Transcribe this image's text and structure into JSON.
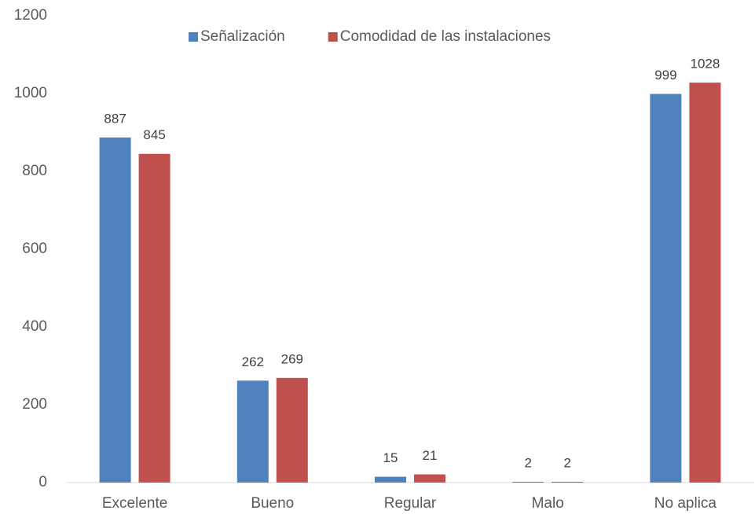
{
  "chart_data": {
    "type": "bar",
    "categories": [
      "Excelente",
      "Bueno",
      "Regular",
      "Malo",
      "No aplica"
    ],
    "series": [
      {
        "name": "Señalización",
        "color": "#4f81bd",
        "values": [
          887,
          262,
          15,
          2,
          999
        ]
      },
      {
        "name": "Comodidad de las instalaciones",
        "color": "#c0504d",
        "values": [
          845,
          269,
          21,
          2,
          1028
        ]
      }
    ],
    "ylim": [
      0,
      1200
    ],
    "yticks": [
      0,
      200,
      400,
      600,
      800,
      1000,
      1200
    ],
    "grid": false,
    "legend": "top"
  }
}
